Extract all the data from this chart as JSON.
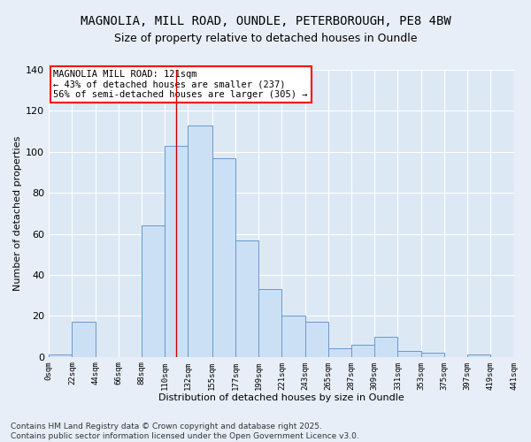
{
  "title_line1": "MAGNOLIA, MILL ROAD, OUNDLE, PETERBOROUGH, PE8 4BW",
  "title_line2": "Size of property relative to detached houses in Oundle",
  "xlabel": "Distribution of detached houses by size in Oundle",
  "ylabel": "Number of detached properties",
  "bar_color": "#cce0f5",
  "bar_edge_color": "#6699cc",
  "background_color": "#dde8f5",
  "plot_bg_color": "#dde8f5",
  "grid_color": "#ffffff",
  "annotation_text": "MAGNOLIA MILL ROAD: 121sqm\n← 43% of detached houses are smaller (237)\n56% of semi-detached houses are larger (305) →",
  "vline_x": 121,
  "vline_color": "#cc0000",
  "bins": [
    0,
    22,
    44,
    66,
    88,
    110,
    132,
    155,
    177,
    199,
    221,
    243,
    265,
    287,
    309,
    331,
    353,
    375,
    397,
    419,
    441
  ],
  "bin_labels": [
    "0sqm",
    "22sqm",
    "44sqm",
    "66sqm",
    "88sqm",
    "110sqm",
    "132sqm",
    "155sqm",
    "177sqm",
    "199sqm",
    "221sqm",
    "243sqm",
    "265sqm",
    "287sqm",
    "309sqm",
    "331sqm",
    "353sqm",
    "375sqm",
    "397sqm",
    "419sqm",
    "441sqm"
  ],
  "bar_heights": [
    1,
    17,
    0,
    0,
    64,
    103,
    113,
    97,
    57,
    33,
    20,
    17,
    4,
    6,
    10,
    3,
    2,
    0,
    1,
    0
  ],
  "ylim": [
    0,
    140
  ],
  "xlim": [
    0,
    441
  ],
  "yticks": [
    0,
    20,
    40,
    60,
    80,
    100,
    120,
    140
  ],
  "footer_text": "Contains HM Land Registry data © Crown copyright and database right 2025.\nContains public sector information licensed under the Open Government Licence v3.0.",
  "title_fontsize": 10,
  "subtitle_fontsize": 9,
  "annotation_fontsize": 7.5,
  "footer_fontsize": 6.5,
  "ylabel_fontsize": 8,
  "xlabel_fontsize": 8
}
